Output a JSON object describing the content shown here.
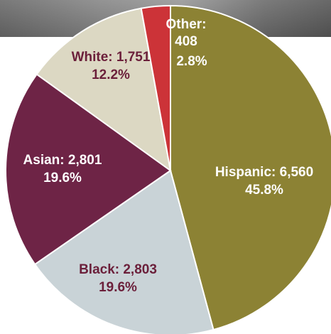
{
  "chart_data": {
    "type": "pie",
    "total_note": "",
    "slices": [
      {
        "name": "Hispanic",
        "value": 6560,
        "percent": "45.8%",
        "value_label": "6,560",
        "color": "#8c8234",
        "text_color": "#ffffff"
      },
      {
        "name": "Black",
        "value": 2803,
        "percent": "19.6%",
        "value_label": "2,803",
        "color": "#c9d3d7",
        "text_color": "#6b1f3a"
      },
      {
        "name": "Asian",
        "value": 2801,
        "percent": "19.6%",
        "value_label": "2,801",
        "color": "#6e2446",
        "text_color": "#ffffff"
      },
      {
        "name": "White",
        "value": 1751,
        "percent": "12.2%",
        "value_label": "1,751",
        "color": "#dcd8c3",
        "text_color": "#6b1f3a"
      },
      {
        "name": "Other",
        "value": 408,
        "percent": "2.8%",
        "value_label": "408",
        "color": "#cc3338",
        "text_color": "#ffffff"
      }
    ]
  },
  "labels": {
    "hispanic_line1": "Hispanic: 6,560",
    "hispanic_line2": "45.8%",
    "black_line1": "Black: 2,803",
    "black_line2": "19.6%",
    "asian_line1": "Asian: 2,801",
    "asian_line2": "19.6%",
    "white_line1": "White: 1,751",
    "white_line2": "12.2%",
    "other_line1": "Other:",
    "other_line2": "408",
    "other_line3": "2.8%"
  }
}
